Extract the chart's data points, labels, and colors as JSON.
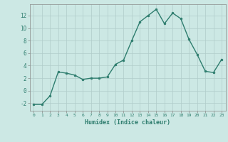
{
  "x": [
    0,
    1,
    2,
    3,
    4,
    5,
    6,
    7,
    8,
    9,
    10,
    11,
    12,
    13,
    14,
    15,
    16,
    17,
    18,
    19,
    20,
    21,
    22,
    23
  ],
  "y": [
    -2.2,
    -2.2,
    -0.8,
    3.0,
    2.8,
    2.5,
    1.8,
    2.0,
    2.0,
    2.2,
    4.2,
    4.9,
    8.0,
    11.0,
    12.0,
    13.0,
    10.7,
    12.4,
    11.5,
    8.2,
    5.8,
    3.1,
    2.9,
    5.0
  ],
  "line_color": "#2e7d6e",
  "marker": "o",
  "marker_size": 2.0,
  "bg_color": "#cce8e4",
  "grid_color": "#b0ccca",
  "xlabel": "Humidex (Indice chaleur)",
  "ylim": [
    -3.2,
    13.8
  ],
  "xlim": [
    -0.5,
    23.5
  ],
  "yticks": [
    -2,
    0,
    2,
    4,
    6,
    8,
    10,
    12
  ],
  "xticks": [
    0,
    1,
    2,
    3,
    4,
    5,
    6,
    7,
    8,
    9,
    10,
    11,
    12,
    13,
    14,
    15,
    16,
    17,
    18,
    19,
    20,
    21,
    22,
    23
  ],
  "tick_label_color": "#2e7d6e",
  "xlabel_color": "#2e7d6e",
  "spine_color": "#888888",
  "line_width": 1.0
}
